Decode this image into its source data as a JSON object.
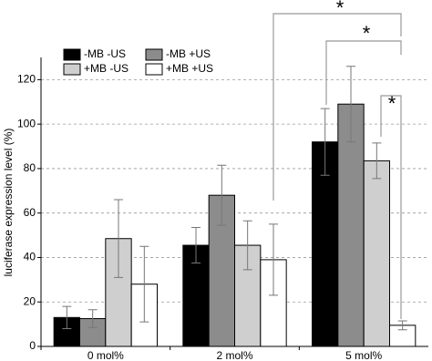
{
  "chart_data": {
    "type": "bar",
    "y_label": "luciferase expression level (%)",
    "categories": [
      "0 mol%",
      "2 mol%",
      "5 mol%"
    ],
    "series": [
      {
        "name": "-MB -US",
        "color": "#000000",
        "values": [
          13,
          45.5,
          92
        ],
        "errors": [
          5,
          8,
          15
        ]
      },
      {
        "name": "-MB +US",
        "color": "#8c8c8c",
        "values": [
          12.5,
          68,
          109
        ],
        "errors": [
          4,
          13.5,
          17
        ]
      },
      {
        "name": "+MB -US",
        "color": "#cfcfcf",
        "values": [
          48.5,
          45.5,
          83.5
        ],
        "errors": [
          17.5,
          11,
          8
        ]
      },
      {
        "name": "+MB +US",
        "color": "#ffffff",
        "values": [
          28,
          39,
          9.5
        ],
        "errors": [
          17,
          16,
          2
        ]
      }
    ],
    "ylim": [
      0,
      130
    ],
    "yticks": [
      0,
      20,
      40,
      60,
      80,
      100,
      120
    ],
    "grid": true,
    "annotations": [
      "*",
      "*",
      "*"
    ]
  }
}
